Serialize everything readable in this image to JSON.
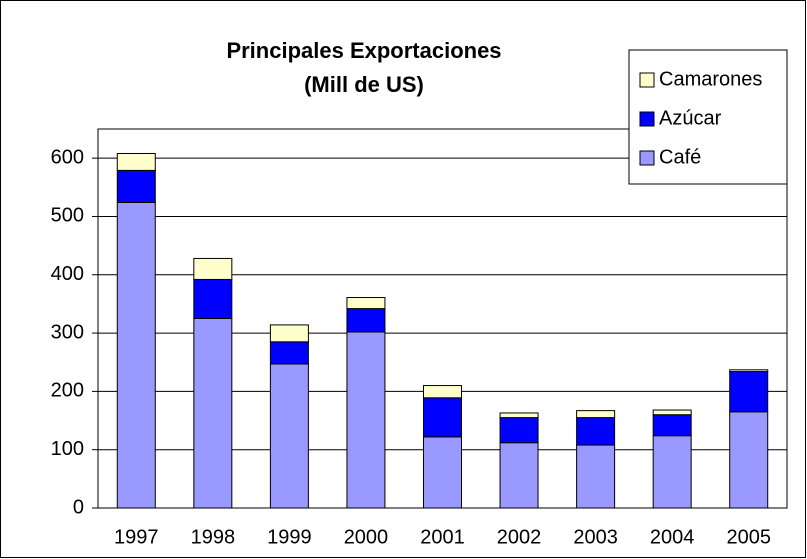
{
  "chart_data": {
    "type": "stacked-bar",
    "title": "Principales Exportaciones",
    "subtitle": "(Mill de US)",
    "categories": [
      "1997",
      "1998",
      "1999",
      "2000",
      "2001",
      "2002",
      "2003",
      "2004",
      "2005"
    ],
    "series": [
      {
        "name": "Café",
        "color": "#9999ff",
        "values": [
          524,
          325,
          247,
          302,
          122,
          112,
          108,
          124,
          165
        ]
      },
      {
        "name": "Azúcar",
        "color": "#0000ff",
        "values": [
          55,
          67,
          38,
          40,
          67,
          43,
          47,
          36,
          69
        ]
      },
      {
        "name": "Camarones",
        "color": "#ffffcc",
        "values": [
          29,
          36,
          29,
          19,
          21,
          8,
          12,
          8,
          3
        ]
      }
    ],
    "ylim": [
      0,
      650
    ],
    "yticks": [
      0,
      100,
      200,
      300,
      400,
      500,
      600
    ],
    "grid": true,
    "legend": "top-right"
  }
}
